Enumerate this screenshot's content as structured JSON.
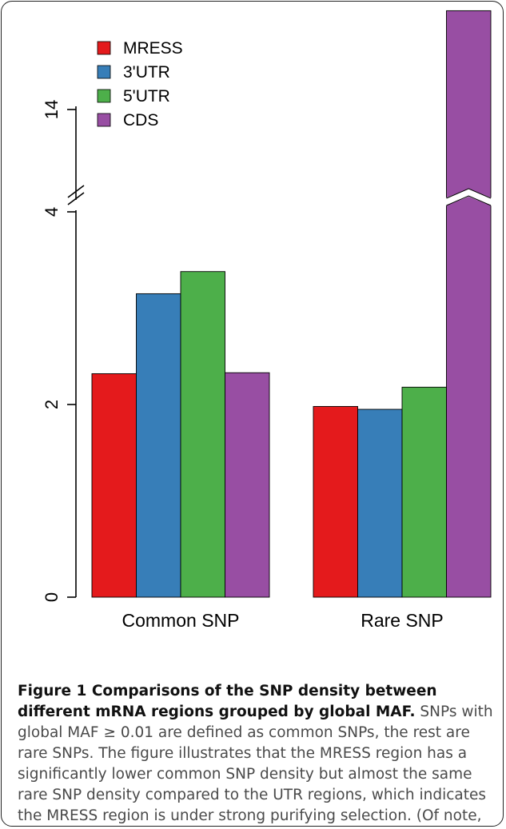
{
  "chart_data": {
    "type": "bar",
    "categories": [
      "Common SNP",
      "Rare SNP"
    ],
    "series": [
      {
        "name": "MRESS",
        "color": "#e41a1c",
        "values": [
          2.32,
          1.98
        ]
      },
      {
        "name": "3'UTR",
        "color": "#377eb8",
        "values": [
          3.15,
          1.95
        ]
      },
      {
        "name": "5'UTR",
        "color": "#4daf4a",
        "values": [
          3.38,
          2.18
        ]
      },
      {
        "name": "CDS",
        "color": "#984ea3",
        "values": [
          2.33,
          15.2
        ]
      }
    ],
    "yaxis": {
      "ticks": [
        {
          "value": 0,
          "label": "0"
        },
        {
          "value": 2,
          "label": "2"
        },
        {
          "value": 4,
          "label": "4"
        },
        {
          "value": 14,
          "label": "14"
        }
      ],
      "axis_break": {
        "lower_max": 4.0,
        "upper_min": 13.0,
        "upper_max": 15.2
      }
    },
    "legend_position": "top-left",
    "xlabel": "",
    "ylabel": ""
  },
  "caption": {
    "title": "Figure 1 Comparisons of the SNP density between different mRNA regions grouped by global MAF.",
    "body": " SNPs with global MAF ≥ 0.01 are defined as common SNPs, the rest are rare SNPs. The figure illustrates that the MRESS region has a significantly lower common SNP density but almost the same rare SNP density compared to the UTR regions, which indicates the MRESS region is under strong purifying selection. (Of note, the exceptionally high rare SNP density of the CDS region is derived from its unparalleled sequencing coverage)."
  }
}
